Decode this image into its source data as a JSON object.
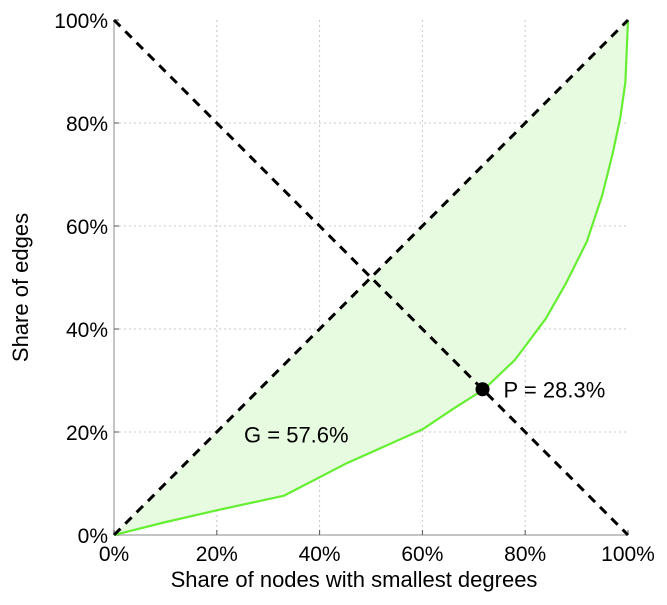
{
  "chart_data": {
    "type": "line",
    "title": "",
    "xlabel": "Share of nodes with smallest degrees",
    "ylabel": "Share of edges",
    "xlim": [
      0,
      100
    ],
    "ylim": [
      0,
      100
    ],
    "x_ticks": [
      "0%",
      "20%",
      "40%",
      "60%",
      "80%",
      "100%"
    ],
    "y_ticks": [
      "0%",
      "20%",
      "40%",
      "60%",
      "80%",
      "100%"
    ],
    "grid": true,
    "series": [
      {
        "style": "solid",
        "color": "#66ee33",
        "fill": "#e6fbe0",
        "x": [
          0,
          10,
          20,
          33,
          45,
          60,
          66,
          72,
          78,
          84,
          88,
          92,
          95,
          97,
          98.5,
          99.5,
          100
        ],
        "y": [
          0,
          2.5,
          4.8,
          7.6,
          13.8,
          20.5,
          24.5,
          28.3,
          34,
          42,
          49,
          57,
          66,
          74,
          81,
          88,
          100
        ]
      },
      {
        "style": "dashed",
        "color": "#000000",
        "x": [
          0,
          100
        ],
        "y": [
          0,
          100
        ]
      },
      {
        "style": "dashed",
        "color": "#000000",
        "x": [
          0,
          100
        ],
        "y": [
          100,
          0
        ]
      }
    ],
    "marker": {
      "x": 71.7,
      "y": 28.3,
      "label": "P = 28.3%"
    },
    "annotations": [
      {
        "text": "G = 57.6%",
        "x": 25.3,
        "y": 19.5
      }
    ]
  }
}
